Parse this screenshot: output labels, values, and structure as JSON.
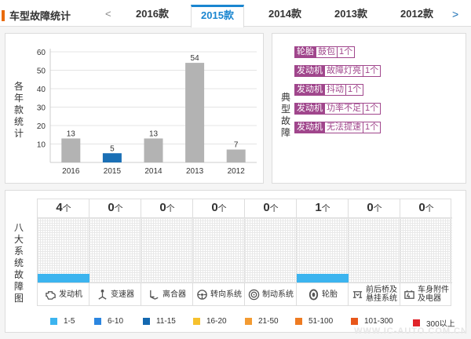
{
  "header": {
    "title": "车型故障统计",
    "prev": "<",
    "next": ">",
    "tabs": [
      {
        "label": "2016款",
        "active": false
      },
      {
        "label": "2015款",
        "active": true
      },
      {
        "label": "2014款",
        "active": false
      },
      {
        "label": "2013款",
        "active": false
      },
      {
        "label": "2012款",
        "active": false
      }
    ]
  },
  "chart_panel": {
    "side_label": "各年款统计"
  },
  "chart_data": {
    "type": "bar",
    "categories": [
      "2016",
      "2015",
      "2014",
      "2013",
      "2012"
    ],
    "values": [
      13,
      5,
      13,
      54,
      7
    ],
    "highlight_category": "2015",
    "highlight_color": "#1a6fb5",
    "bar_color": "#b3b3b3",
    "ylim": [
      0,
      60
    ],
    "yticks": [
      10,
      20,
      30,
      40,
      50,
      60
    ],
    "grid": true
  },
  "fault_panel": {
    "side_label": "典型故障",
    "faults": [
      {
        "system": "轮胎",
        "fault": "鼓包",
        "count": "1个"
      },
      {
        "system": "发动机",
        "fault": "故障灯亮",
        "count": "1个"
      },
      {
        "system": "发动机",
        "fault": "抖动",
        "count": "1个"
      },
      {
        "system": "发动机",
        "fault": "功率不足",
        "count": "1个"
      },
      {
        "system": "发动机",
        "fault": "无法提速",
        "count": "1个"
      }
    ]
  },
  "systems_panel": {
    "side_label": "八大系统故障图",
    "unit": "个",
    "systems": [
      {
        "name": "发动机",
        "count": "4",
        "fill": 0.13,
        "icon": "engine-icon"
      },
      {
        "name": "变速器",
        "count": "0",
        "fill": 0,
        "icon": "gear-shift-icon"
      },
      {
        "name": "离合器",
        "count": "0",
        "fill": 0,
        "icon": "clutch-pedal-icon"
      },
      {
        "name": "转向系统",
        "count": "0",
        "fill": 0,
        "icon": "steering-wheel-icon"
      },
      {
        "name": "制动系统",
        "count": "0",
        "fill": 0,
        "icon": "brake-disc-icon"
      },
      {
        "name": "轮胎",
        "count": "1",
        "fill": 0.13,
        "icon": "tire-icon"
      },
      {
        "name": "前后桥及悬挂系统",
        "name_lines": [
          "前后桥及",
          "悬挂系统"
        ],
        "count": "0",
        "fill": 0,
        "icon": "suspension-icon"
      },
      {
        "name": "车身附件及电器",
        "name_lines": [
          "车身附件",
          "及电器"
        ],
        "count": "0",
        "fill": 0,
        "icon": "car-battery-icon"
      }
    ]
  },
  "legend": [
    {
      "label": "1-5",
      "color": "#3cb4ef"
    },
    {
      "label": "6-10",
      "color": "#2b86e0"
    },
    {
      "label": "11-15",
      "color": "#1468b0"
    },
    {
      "label": "16-20",
      "color": "#f6c12d"
    },
    {
      "label": "21-50",
      "color": "#f39b32"
    },
    {
      "label": "51-100",
      "color": "#ee7b22"
    },
    {
      "label": "101-300",
      "color": "#e8571b"
    },
    {
      "label": "300以上",
      "color": "#e0242a"
    }
  ],
  "watermark": "WWW.IC-AUTO.COM.CN"
}
